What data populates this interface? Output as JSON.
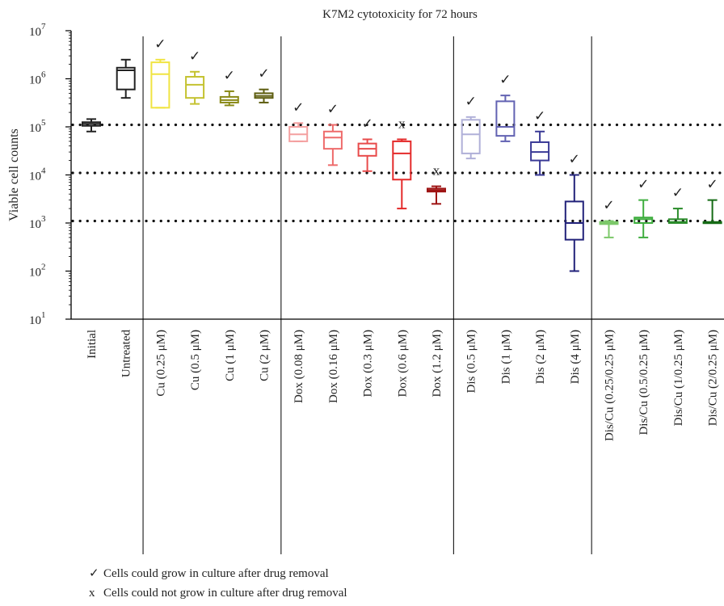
{
  "chart_data": {
    "type": "box",
    "title": "K7M2 cytotoxicity for 72 hours",
    "ylabel": "Viable cell counts",
    "xlabel": "",
    "yscale": "log",
    "ylim": [
      10,
      10000000
    ],
    "yticks": [
      {
        "value": 10,
        "base": "10",
        "exp": "1"
      },
      {
        "value": 100,
        "base": "10",
        "exp": "2"
      },
      {
        "value": 1000,
        "base": "10",
        "exp": "3"
      },
      {
        "value": 10000,
        "base": "10",
        "exp": "4"
      },
      {
        "value": 100000,
        "base": "10",
        "exp": "5"
      },
      {
        "value": 1000000,
        "base": "10",
        "exp": "6"
      },
      {
        "value": 10000000,
        "base": "10",
        "exp": "7"
      }
    ],
    "reference_lines": [
      1100,
      11000,
      110000
    ],
    "group_separators_after": [
      "Untreated",
      "Cu (2 μM)",
      "Dox (1.2 μM)",
      "Dis (4 μM)"
    ],
    "categories": [
      {
        "label": "Initial",
        "color": "#222222",
        "min": 80000,
        "q1": 105000,
        "median": 115000,
        "q3": 125000,
        "max": 145000,
        "marker": ""
      },
      {
        "label": "Untreated",
        "color": "#222222",
        "min": 400000,
        "q1": 600000,
        "median": 1500000,
        "q3": 1700000,
        "max": 2500000,
        "marker": ""
      },
      {
        "label": "Cu (0.25 μM)",
        "color": "#f0e442",
        "min": 250000,
        "q1": 250000,
        "median": 1250000,
        "q3": 2200000,
        "max": 2500000,
        "marker": "✓"
      },
      {
        "label": "Cu (0.5 μM)",
        "color": "#c4c230",
        "min": 300000,
        "q1": 400000,
        "median": 750000,
        "q3": 1100000,
        "max": 1400000,
        "marker": "✓"
      },
      {
        "label": "Cu (1 μM)",
        "color": "#8a8a18",
        "min": 280000,
        "q1": 320000,
        "median": 360000,
        "q3": 420000,
        "max": 550000,
        "marker": "✓"
      },
      {
        "label": "Cu (2 μM)",
        "color": "#5e5e10",
        "min": 320000,
        "q1": 400000,
        "median": 440000,
        "q3": 500000,
        "max": 600000,
        "marker": "✓"
      },
      {
        "label": "Dox (0.08 μM)",
        "color": "#f4a0a0",
        "min": 50000,
        "q1": 50000,
        "median": 70000,
        "q3": 100000,
        "max": 120000,
        "marker": "✓"
      },
      {
        "label": "Dox (0.16 μM)",
        "color": "#ee6b6b",
        "min": 16000,
        "q1": 35000,
        "median": 60000,
        "q3": 80000,
        "max": 110000,
        "marker": "✓"
      },
      {
        "label": "Dox (0.3 μM)",
        "color": "#e84b4b",
        "min": 12000,
        "q1": 25000,
        "median": 35000,
        "q3": 45000,
        "max": 55000,
        "marker": "✓"
      },
      {
        "label": "Dox (0.6 μM)",
        "color": "#e42a2a",
        "min": 2000,
        "q1": 8000,
        "median": 28000,
        "q3": 50000,
        "max": 55000,
        "marker": "x"
      },
      {
        "label": "Dox (1.2 μM)",
        "color": "#9e1414",
        "min": 2500,
        "q1": 4500,
        "median": 4800,
        "q3": 5200,
        "max": 5800,
        "marker": "x"
      },
      {
        "label": "Dis (0.5 μM)",
        "color": "#b0b0d8",
        "min": 22000,
        "q1": 28000,
        "median": 70000,
        "q3": 140000,
        "max": 160000,
        "marker": "✓"
      },
      {
        "label": "Dis (1 μM)",
        "color": "#6262b2",
        "min": 50000,
        "q1": 65000,
        "median": 100000,
        "q3": 340000,
        "max": 450000,
        "marker": "✓"
      },
      {
        "label": "Dis (2 μM)",
        "color": "#3a3a96",
        "min": 10000,
        "q1": 20000,
        "median": 30000,
        "q3": 48000,
        "max": 80000,
        "marker": "✓"
      },
      {
        "label": "Dis (4 μM)",
        "color": "#22227a",
        "min": 100,
        "q1": 450,
        "median": 1000,
        "q3": 2800,
        "max": 10000,
        "marker": "✓"
      },
      {
        "label": "Dis/Cu (0.25/0.25 μM)",
        "color": "#7cc86a",
        "min": 500,
        "q1": 950,
        "median": 1000,
        "q3": 1050,
        "max": 1100,
        "marker": "✓"
      },
      {
        "label": "Dis/Cu (0.5/0.25 μM)",
        "color": "#3fae3f",
        "min": 500,
        "q1": 1000,
        "median": 1200,
        "q3": 1300,
        "max": 3000,
        "marker": "✓"
      },
      {
        "label": "Dis/Cu (1/0.25 μM)",
        "color": "#2a8c2a",
        "min": 1000,
        "q1": 1000,
        "median": 1050,
        "q3": 1200,
        "max": 2000,
        "marker": "✓"
      },
      {
        "label": "Dis/Cu (2/0.25 μM)",
        "color": "#156b15",
        "min": 1000,
        "q1": 1000,
        "median": 1000,
        "q3": 1050,
        "max": 3000,
        "marker": "✓"
      }
    ],
    "legend": [
      {
        "symbol": "✓",
        "text": "Cells could grow in culture after drug removal"
      },
      {
        "symbol": "x",
        "text": "Cells could not grow in culture after drug removal"
      }
    ]
  }
}
